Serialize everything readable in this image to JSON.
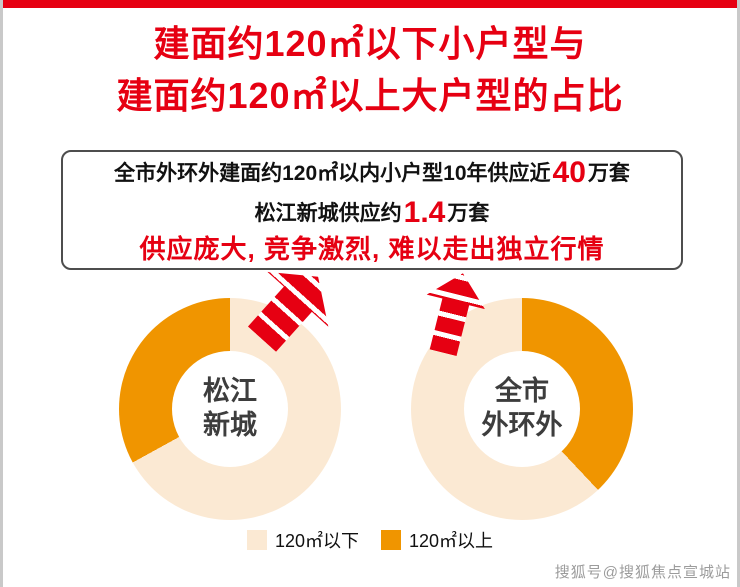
{
  "title": {
    "line1": "建面约120㎡以下小户型与",
    "line2": "建面约120㎡以上大户型的占比"
  },
  "info_box": {
    "line1_pre": "全市外环外建面约120㎡以内小户型10年供应近",
    "line1_value": "40",
    "line1_post": "万套",
    "line2_pre": "松江新城供应约",
    "line2_value": "1.4",
    "line2_post": "万套",
    "line3": "供应庞大, 竞争激烈, 难以走出独立行情"
  },
  "legend": {
    "below_label": "120㎡以下",
    "above_label": "120㎡以上"
  },
  "watermark": "搜狐号@搜狐焦点宣城站",
  "colors": {
    "red": "#e60012",
    "orange": "#f09500",
    "cream": "#fbe9d3",
    "text_dark": "#3d3d3d"
  },
  "chart_data": [
    {
      "type": "pie",
      "title": "松江新城",
      "label_lines": [
        "松江",
        "新城"
      ],
      "legend_position": "bottom",
      "slices": [
        {
          "label": "120㎡以下",
          "value": 67,
          "color": "#fbe9d3"
        },
        {
          "label": "120㎡以上",
          "value": 33,
          "color": "#f09500"
        }
      ]
    },
    {
      "type": "pie",
      "title": "全市外环外",
      "label_lines": [
        "全市",
        "外环外"
      ],
      "legend_position": "bottom",
      "slices": [
        {
          "label": "120㎡以上",
          "value": 38,
          "color": "#f09500"
        },
        {
          "label": "120㎡以下",
          "value": 62,
          "color": "#fbe9d3"
        }
      ]
    }
  ]
}
